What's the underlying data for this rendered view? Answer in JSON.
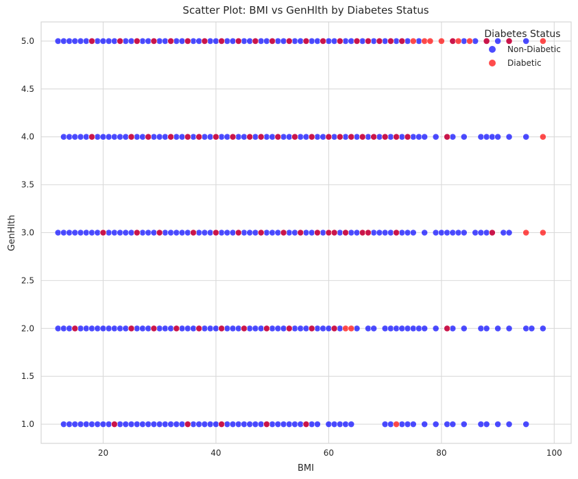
{
  "chart_data": {
    "type": "scatter",
    "title": "Scatter Plot: BMI vs GenHlth by Diabetes Status",
    "xlabel": "BMI",
    "ylabel": "GenHlth",
    "xlim": [
      9,
      103
    ],
    "ylim": [
      0.8,
      5.2
    ],
    "xticks": [
      20,
      40,
      60,
      80,
      100
    ],
    "yticks": [
      1.0,
      1.5,
      2.0,
      2.5,
      3.0,
      3.5,
      4.0,
      4.5,
      5.0
    ],
    "grid": true,
    "legend": {
      "title": "Diabetes Status",
      "placement": "top-right",
      "entries": [
        {
          "label": "Non-Diabetic",
          "color": "#0000ff"
        },
        {
          "label": "Diabetic",
          "color": "#ff0000"
        }
      ]
    },
    "series": [
      {
        "name": "Non-Diabetic",
        "color": "#0000ff",
        "points": {
          "5": [
            12,
            13,
            14,
            15,
            16,
            17,
            18,
            19,
            20,
            21,
            22,
            23,
            24,
            25,
            26,
            27,
            28,
            29,
            30,
            31,
            32,
            33,
            34,
            35,
            36,
            37,
            38,
            39,
            40,
            41,
            42,
            43,
            44,
            45,
            46,
            47,
            48,
            49,
            50,
            51,
            52,
            53,
            54,
            55,
            56,
            57,
            58,
            59,
            60,
            61,
            62,
            63,
            64,
            65,
            66,
            67,
            68,
            69,
            70,
            71,
            72,
            73,
            74,
            76,
            82,
            84,
            86,
            88,
            90,
            92,
            95
          ],
          "4": [
            13,
            14,
            15,
            16,
            17,
            18,
            19,
            20,
            21,
            22,
            23,
            24,
            25,
            26,
            27,
            28,
            29,
            30,
            31,
            32,
            33,
            34,
            35,
            36,
            37,
            38,
            39,
            40,
            41,
            42,
            43,
            44,
            45,
            46,
            47,
            48,
            49,
            50,
            51,
            52,
            53,
            54,
            55,
            56,
            57,
            58,
            59,
            60,
            61,
            62,
            63,
            64,
            65,
            66,
            67,
            68,
            69,
            70,
            71,
            72,
            73,
            74,
            75,
            76,
            77,
            79,
            81,
            82,
            84,
            87,
            88,
            89,
            90,
            92,
            95
          ],
          "3": [
            12,
            13,
            14,
            15,
            16,
            17,
            18,
            19,
            20,
            21,
            22,
            23,
            24,
            25,
            26,
            27,
            28,
            29,
            30,
            31,
            32,
            33,
            34,
            35,
            36,
            37,
            38,
            39,
            40,
            41,
            42,
            43,
            44,
            45,
            46,
            47,
            48,
            49,
            50,
            51,
            52,
            53,
            54,
            55,
            56,
            57,
            58,
            59,
            60,
            61,
            62,
            63,
            64,
            65,
            66,
            67,
            68,
            69,
            70,
            71,
            72,
            73,
            74,
            75,
            77,
            79,
            80,
            81,
            82,
            83,
            84,
            86,
            87,
            88,
            89,
            91,
            92
          ],
          "2": [
            12,
            13,
            14,
            15,
            16,
            17,
            18,
            19,
            20,
            21,
            22,
            23,
            24,
            25,
            26,
            27,
            28,
            29,
            30,
            31,
            32,
            33,
            34,
            35,
            36,
            37,
            38,
            39,
            40,
            41,
            42,
            43,
            44,
            45,
            46,
            47,
            48,
            49,
            50,
            51,
            52,
            53,
            54,
            55,
            56,
            57,
            58,
            59,
            60,
            61,
            62,
            65,
            67,
            68,
            70,
            71,
            72,
            73,
            74,
            75,
            76,
            77,
            79,
            81,
            82,
            84,
            87,
            88,
            90,
            92,
            95,
            96,
            98
          ],
          "1": [
            13,
            14,
            15,
            16,
            17,
            18,
            19,
            20,
            21,
            22,
            23,
            24,
            25,
            26,
            27,
            28,
            29,
            30,
            31,
            32,
            33,
            34,
            35,
            36,
            37,
            38,
            39,
            40,
            41,
            42,
            43,
            44,
            45,
            46,
            47,
            48,
            49,
            50,
            51,
            52,
            53,
            54,
            55,
            56,
            57,
            58,
            60,
            61,
            62,
            63,
            64,
            70,
            71,
            73,
            74,
            75,
            77,
            79,
            81,
            82,
            84,
            87,
            88,
            90,
            92,
            95
          ]
        }
      },
      {
        "name": "Diabetic",
        "color": "#ff0000",
        "points": {
          "5": [
            18,
            23,
            26,
            29,
            32,
            35,
            38,
            41,
            44,
            47,
            50,
            53,
            56,
            59,
            62,
            65,
            67,
            69,
            71,
            73,
            75,
            77,
            78,
            80,
            82,
            83,
            85,
            88,
            92,
            98
          ],
          "4": [
            18,
            25,
            28,
            32,
            35,
            37,
            40,
            43,
            46,
            48,
            51,
            54,
            57,
            60,
            62,
            64,
            66,
            68,
            70,
            72,
            74,
            81,
            98
          ],
          "3": [
            20,
            26,
            30,
            36,
            40,
            44,
            48,
            52,
            55,
            58,
            60,
            61,
            63,
            66,
            67,
            72,
            89,
            95,
            98
          ],
          "2": [
            15,
            25,
            29,
            33,
            37,
            41,
            45,
            49,
            53,
            57,
            61,
            63,
            64,
            81
          ],
          "1": [
            22,
            35,
            41,
            49,
            56,
            72
          ]
        }
      }
    ]
  }
}
